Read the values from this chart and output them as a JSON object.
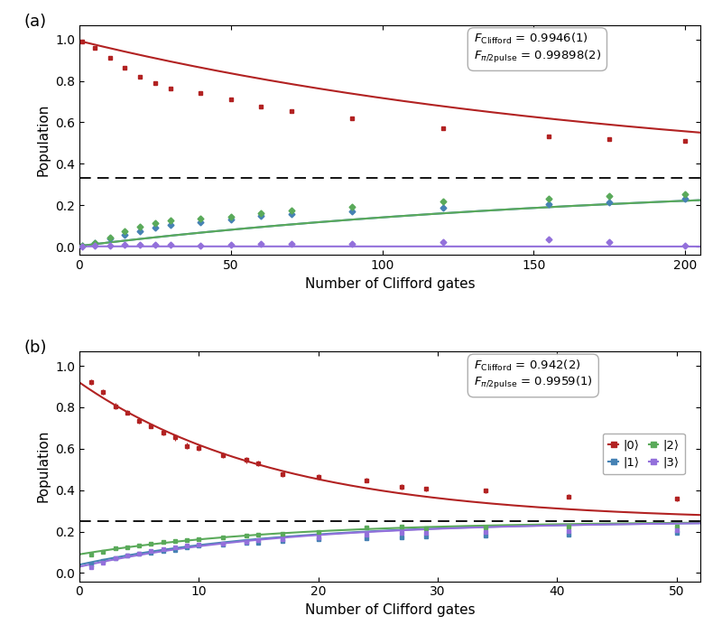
{
  "panel_a": {
    "title_label": "(a)",
    "xlabel": "Number of Clifford gates",
    "ylabel": "Population",
    "xlim": [
      0,
      205
    ],
    "ylim": [
      -0.04,
      1.07
    ],
    "dashed_line_y": 0.333,
    "xticks": [
      0,
      50,
      100,
      150,
      200
    ],
    "yticks": [
      0.0,
      0.2,
      0.4,
      0.6,
      0.8,
      1.0
    ],
    "fit_text_line1": "$F_{\\mathrm{Clifford}}$ = 0.9946(1)",
    "fit_text_line2": "$F_{\\pi/2\\mathrm{pulse}}$ = 0.99898(2)",
    "data_x": [
      1,
      5,
      10,
      15,
      20,
      25,
      30,
      40,
      50,
      60,
      70,
      90,
      120,
      155,
      175,
      200
    ],
    "data_0": [
      0.99,
      0.96,
      0.912,
      0.862,
      0.82,
      0.79,
      0.762,
      0.742,
      0.712,
      0.678,
      0.656,
      0.62,
      0.573,
      0.53,
      0.52,
      0.51
    ],
    "data_1": [
      0.004,
      0.018,
      0.038,
      0.058,
      0.076,
      0.09,
      0.103,
      0.116,
      0.133,
      0.148,
      0.156,
      0.172,
      0.187,
      0.205,
      0.212,
      0.23
    ],
    "data_2": [
      0.005,
      0.018,
      0.044,
      0.073,
      0.094,
      0.112,
      0.126,
      0.136,
      0.146,
      0.163,
      0.174,
      0.193,
      0.218,
      0.23,
      0.244,
      0.255
    ],
    "data_3": [
      0.001,
      0.004,
      0.006,
      0.007,
      0.01,
      0.008,
      0.009,
      0.006,
      0.009,
      0.011,
      0.014,
      0.015,
      0.022,
      0.035,
      0.024,
      0.005
    ],
    "color_0": "#b22222",
    "color_1": "#4682b4",
    "color_2": "#5aaa5a",
    "color_3": "#9370db",
    "F_clifford": 0.9946,
    "F_pi2": 0.99898
  },
  "panel_b": {
    "title_label": "(b)",
    "xlabel": "Number of Clifford gates",
    "ylabel": "Population",
    "xlim": [
      0,
      52
    ],
    "ylim": [
      -0.04,
      1.07
    ],
    "dashed_line_y": 0.25,
    "xticks": [
      0,
      10,
      20,
      30,
      40,
      50
    ],
    "yticks": [
      0.0,
      0.2,
      0.4,
      0.6,
      0.8,
      1.0
    ],
    "fit_text_line1": "$F_{\\mathrm{Clifford}}$ = 0.942(2)",
    "fit_text_line2": "$F_{\\pi/2\\mathrm{pulse}}$ = 0.9959(1)",
    "data_x": [
      1,
      2,
      3,
      4,
      5,
      6,
      7,
      8,
      9,
      10,
      12,
      14,
      15,
      17,
      20,
      24,
      27,
      29,
      34,
      41,
      50
    ],
    "data_0": [
      0.921,
      0.875,
      0.805,
      0.775,
      0.735,
      0.71,
      0.678,
      0.655,
      0.613,
      0.605,
      0.568,
      0.545,
      0.53,
      0.477,
      0.465,
      0.448,
      0.416,
      0.406,
      0.397,
      0.37,
      0.358
    ],
    "data_1": [
      0.04,
      0.057,
      0.072,
      0.083,
      0.094,
      0.097,
      0.107,
      0.112,
      0.122,
      0.132,
      0.137,
      0.144,
      0.147,
      0.155,
      0.162,
      0.167,
      0.172,
      0.175,
      0.18,
      0.187,
      0.194
    ],
    "data_2": [
      0.09,
      0.1,
      0.12,
      0.125,
      0.133,
      0.14,
      0.148,
      0.153,
      0.16,
      0.165,
      0.172,
      0.18,
      0.183,
      0.19,
      0.2,
      0.218,
      0.222,
      0.217,
      0.218,
      0.225,
      0.225
    ],
    "data_3": [
      0.03,
      0.05,
      0.07,
      0.085,
      0.095,
      0.105,
      0.115,
      0.122,
      0.133,
      0.135,
      0.143,
      0.15,
      0.157,
      0.164,
      0.173,
      0.185,
      0.192,
      0.195,
      0.2,
      0.203,
      0.207
    ],
    "err_0": [
      0.012,
      0.012,
      0.015,
      0.012,
      0.015,
      0.012,
      0.015,
      0.015,
      0.015,
      0.015,
      0.012,
      0.015,
      0.012,
      0.012,
      0.012,
      0.012,
      0.012,
      0.012,
      0.012,
      0.012,
      0.012
    ],
    "err_1": [
      0.007,
      0.007,
      0.007,
      0.007,
      0.007,
      0.007,
      0.007,
      0.007,
      0.007,
      0.007,
      0.007,
      0.007,
      0.007,
      0.007,
      0.007,
      0.007,
      0.007,
      0.007,
      0.007,
      0.007,
      0.007
    ],
    "err_2": [
      0.008,
      0.008,
      0.008,
      0.008,
      0.008,
      0.008,
      0.008,
      0.008,
      0.008,
      0.008,
      0.008,
      0.008,
      0.008,
      0.008,
      0.008,
      0.008,
      0.008,
      0.008,
      0.008,
      0.008,
      0.008
    ],
    "err_3": [
      0.008,
      0.008,
      0.008,
      0.008,
      0.008,
      0.008,
      0.008,
      0.008,
      0.008,
      0.008,
      0.008,
      0.008,
      0.008,
      0.008,
      0.008,
      0.008,
      0.008,
      0.008,
      0.008,
      0.008,
      0.008
    ],
    "color_0": "#b22222",
    "color_1": "#4682b4",
    "color_2": "#5aaa5a",
    "color_3": "#9370db",
    "legend_labels": [
      "|0⟩",
      "|1⟩",
      "|2⟩",
      "|3⟩"
    ]
  }
}
